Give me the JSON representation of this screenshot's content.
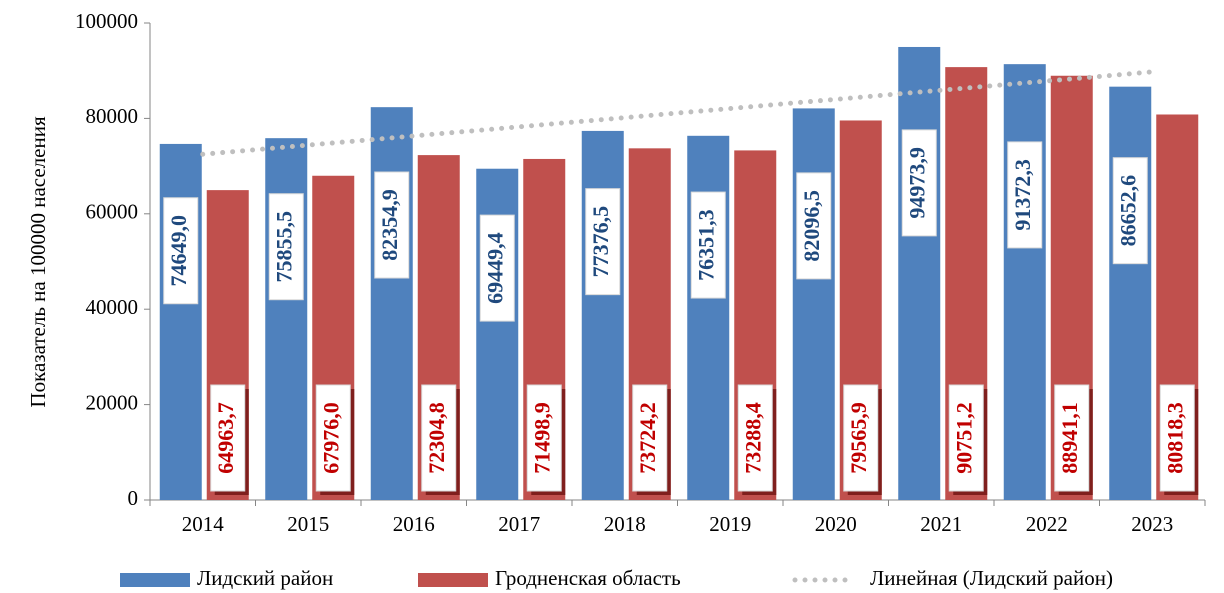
{
  "chart_data": {
    "type": "bar",
    "y_label": "Показатель на 100000 населения",
    "categories": [
      "2014",
      "2015",
      "2016",
      "2017",
      "2018",
      "2019",
      "2020",
      "2021",
      "2022",
      "2023"
    ],
    "series": [
      {
        "name": "Лидский район",
        "type": "bar",
        "color": "#4f81bd",
        "label_color": "#1f497d",
        "values": [
          74649.0,
          75855.5,
          82354.9,
          69449.4,
          77376.5,
          76351.3,
          82096.5,
          94973.9,
          91372.3,
          86652.6
        ],
        "value_labels": [
          "74649,0",
          "75855,5",
          "82354,9",
          "69449,4",
          "77376,5",
          "76351,3",
          "82096,5",
          "94973,9",
          "91372,3",
          "86652,6"
        ]
      },
      {
        "name": "Гродненская область",
        "type": "bar",
        "color": "#c0504d",
        "label_color": "#c00000",
        "values": [
          64963.7,
          67976.0,
          72304.8,
          71498.9,
          73724.2,
          73288.4,
          79565.9,
          90751.2,
          88941.1,
          80818.3
        ],
        "value_labels": [
          "64963,7",
          "67976,0",
          "72304,8",
          "71498,9",
          "73724,2",
          "73288,4",
          "79565,9",
          "90751,2",
          "88941,1",
          "80818,3"
        ]
      },
      {
        "name": "Линейная (Лидский район)",
        "type": "line",
        "color": "#bfbfbf",
        "values": [
          72477,
          74396,
          76315,
          78234,
          80154,
          82073,
          83992,
          85911,
          87830,
          89750
        ]
      }
    ],
    "ylim": [
      0,
      100000
    ],
    "yticks": [
      0,
      20000,
      40000,
      60000,
      80000,
      100000
    ],
    "grid": false,
    "legend": "bottom"
  }
}
